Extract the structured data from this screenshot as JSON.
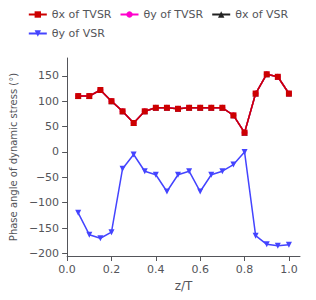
{
  "chart_data": {
    "type": "line",
    "x_label": "z/T",
    "y_label": "Phase angle of dynamic stress (°)",
    "x": [
      0.05,
      0.1,
      0.15,
      0.2,
      0.25,
      0.3,
      0.35,
      0.4,
      0.45,
      0.5,
      0.55,
      0.6,
      0.65,
      0.7,
      0.75,
      0.8,
      0.85,
      0.9,
      0.95,
      1.0
    ],
    "series": [
      {
        "name": "θx of TVSR",
        "color": "#cc0000",
        "marker": "square",
        "values": [
          110,
          110,
          122,
          100,
          80,
          57,
          80,
          87,
          87,
          85,
          87,
          87,
          87,
          87,
          72,
          38,
          115,
          153,
          148,
          115
        ]
      },
      {
        "name": "θy of TVSR",
        "color": "#ff00cc",
        "marker": "circle",
        "values": [
          110,
          110,
          122,
          100,
          80,
          57,
          80,
          87,
          87,
          85,
          87,
          87,
          87,
          87,
          72,
          38,
          115,
          153,
          148,
          115
        ]
      },
      {
        "name": "θx of VSR",
        "color": "#222222",
        "marker": "triangle-up",
        "values": [
          110,
          110,
          122,
          100,
          80,
          57,
          80,
          87,
          87,
          85,
          87,
          87,
          87,
          87,
          72,
          38,
          115,
          153,
          148,
          115
        ]
      },
      {
        "name": "θy of VSR",
        "color": "#4444ff",
        "marker": "triangle-down",
        "values": [
          -120,
          -163,
          -170,
          -158,
          -33,
          -5,
          -38,
          -45,
          -78,
          -45,
          -38,
          -78,
          -45,
          -38,
          -25,
          0,
          -165,
          -182,
          -185,
          -183
        ]
      }
    ],
    "xlim": [
      0.0,
      1.05
    ],
    "ylim": [
      -205,
      185
    ],
    "xticks": [
      {
        "value": 0.0,
        "label": "0.0"
      },
      0.2,
      0.4,
      0.6,
      0.8,
      {
        "value": 1.0,
        "label": "1.0"
      }
    ],
    "yticks": [
      {
        "value": -200,
        "label": "−200"
      },
      {
        "value": -150,
        "label": "−150"
      },
      {
        "value": -100,
        "label": "−100"
      },
      {
        "value": -50,
        "label": "−50"
      },
      0,
      50,
      100,
      150
    ],
    "grid": false,
    "legend": "top"
  }
}
